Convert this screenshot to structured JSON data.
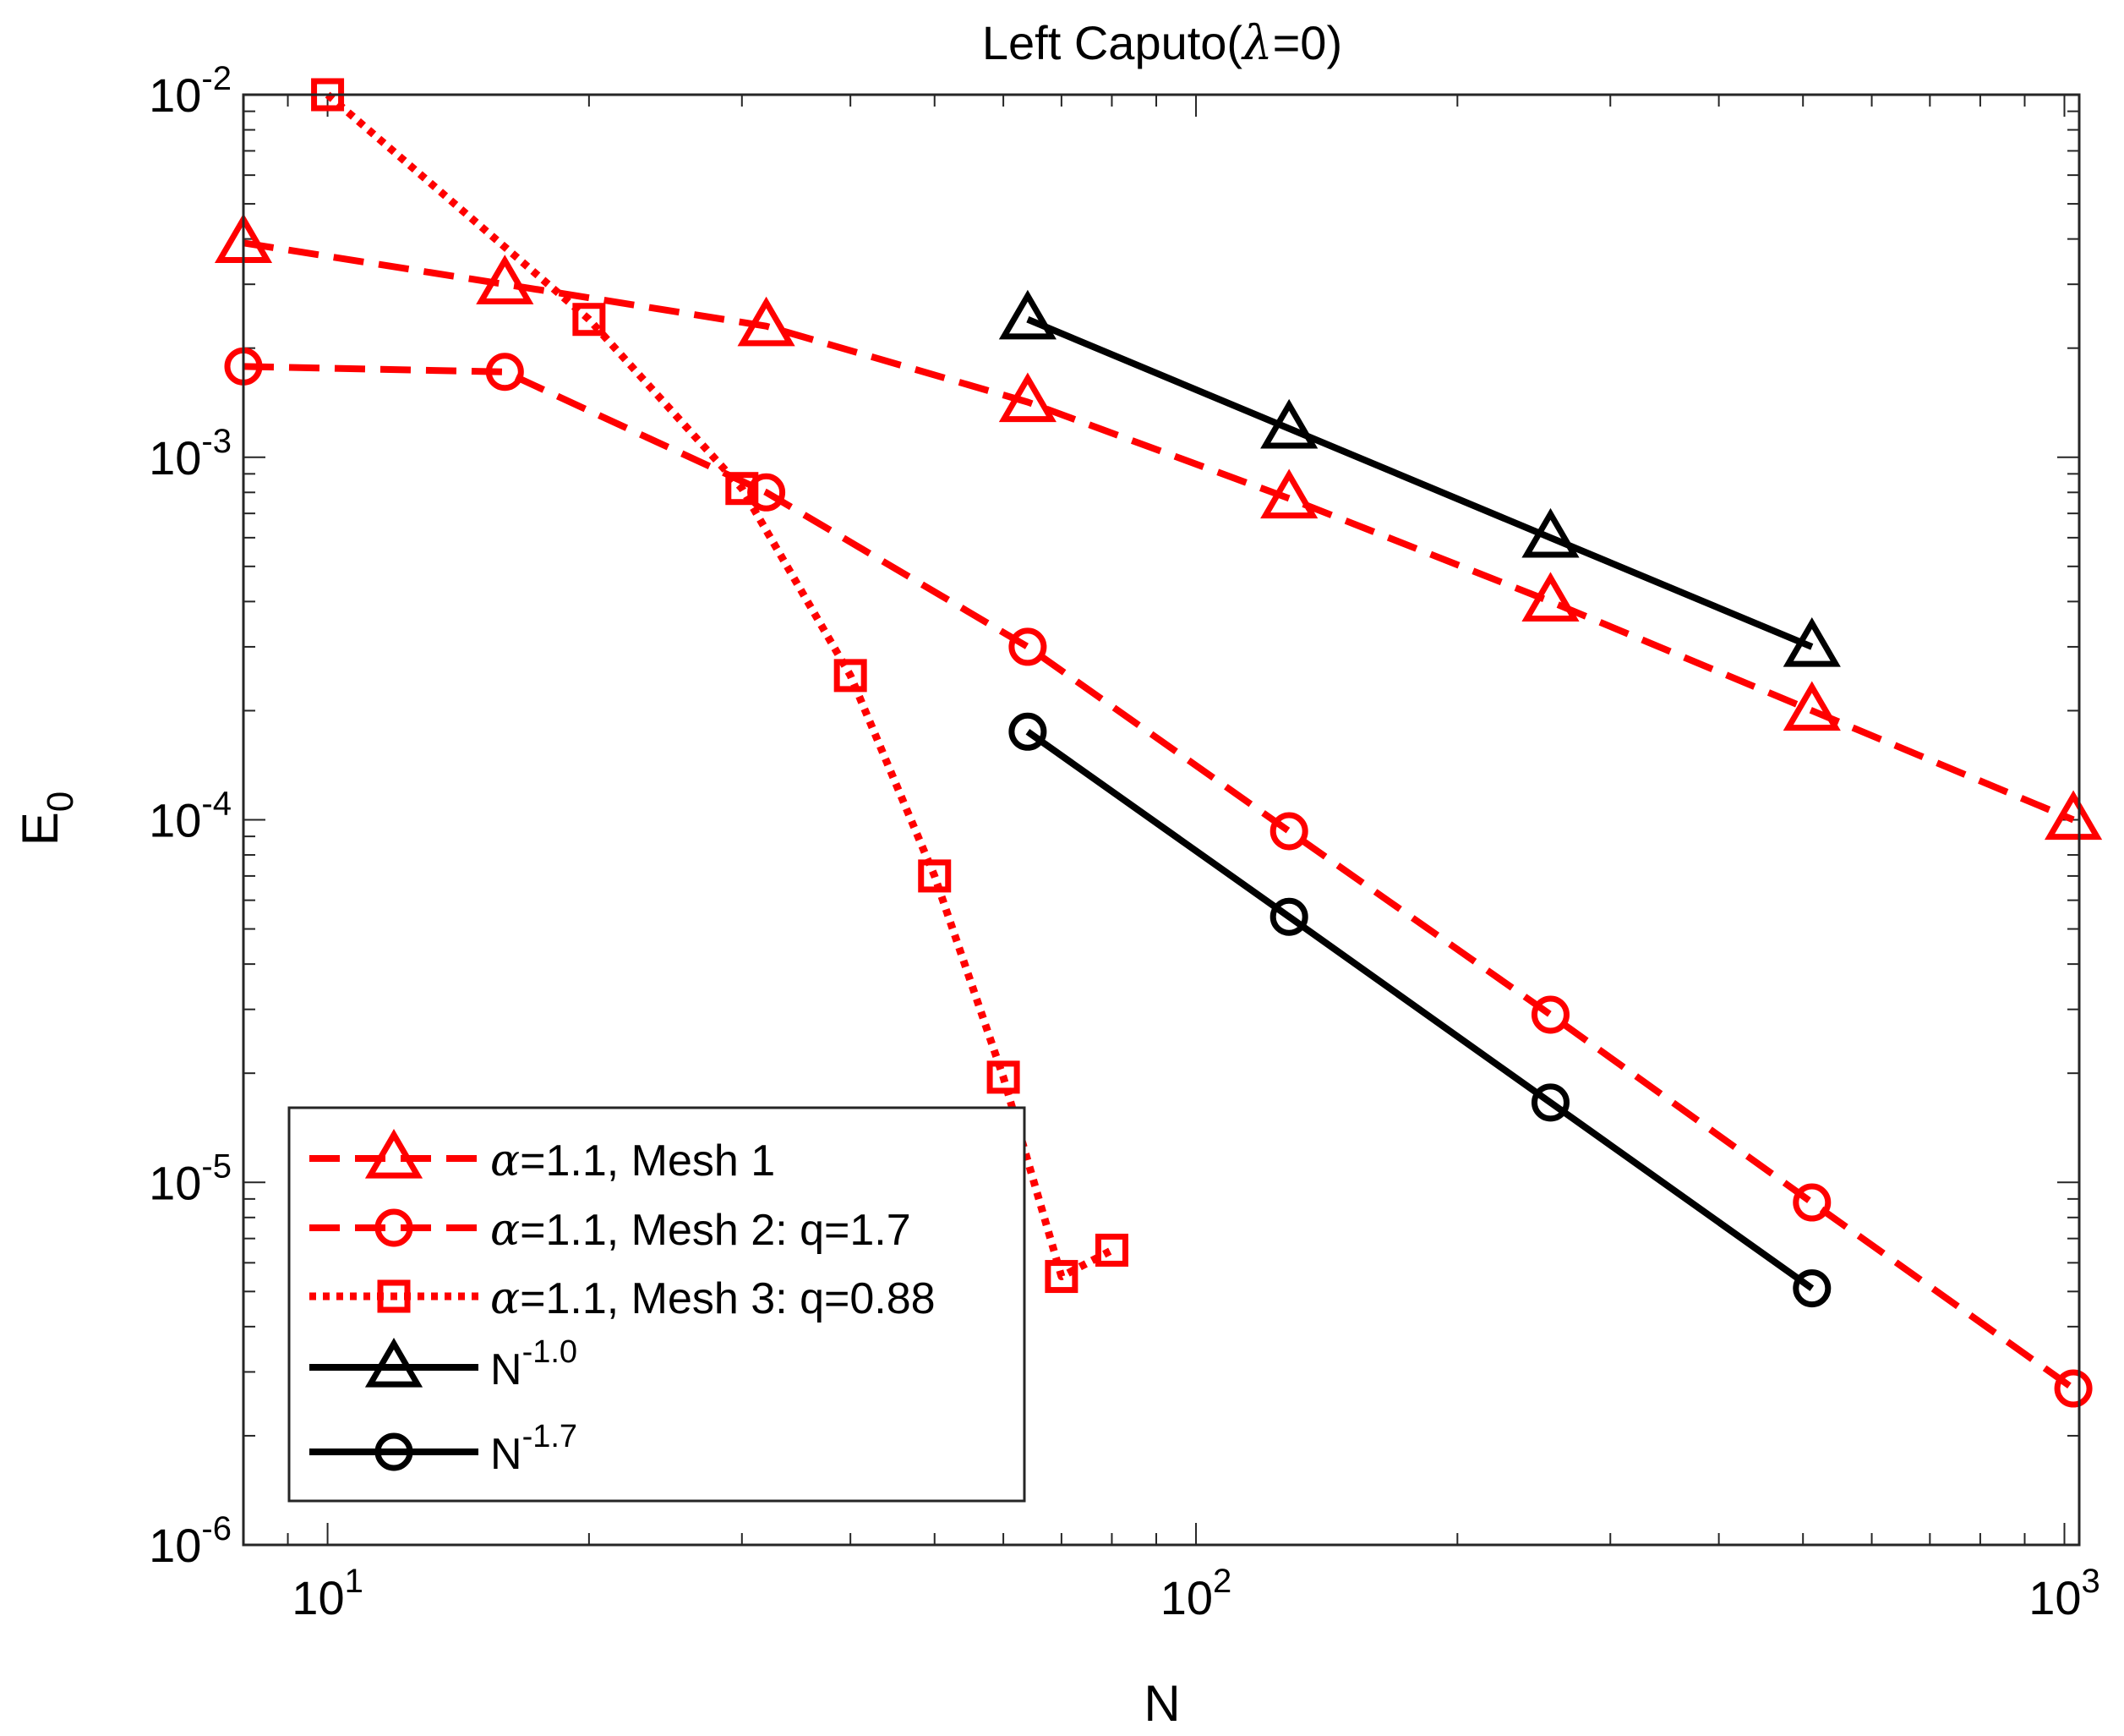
{
  "chart_data": {
    "type": "line",
    "scale": {
      "x": "log",
      "y": "log"
    },
    "title": {
      "prefix": "Left Caputo(",
      "symbol": "λ",
      "suffix": "=0)"
    },
    "xlabel": "N",
    "ylabel": {
      "base": "E",
      "sub": "0"
    },
    "xlim": [
      8,
      1040
    ],
    "ylim": [
      1e-06,
      0.01
    ],
    "x_ticks": [
      {
        "base": "10",
        "exp": "1",
        "value": 10
      },
      {
        "base": "10",
        "exp": "2",
        "value": 100
      },
      {
        "base": "10",
        "exp": "3",
        "value": 1000
      }
    ],
    "y_ticks": [
      {
        "base": "10",
        "exp": "-6",
        "value": 1e-06
      },
      {
        "base": "10",
        "exp": "-5",
        "value": 1e-05
      },
      {
        "base": "10",
        "exp": "-4",
        "value": 0.0001
      },
      {
        "base": "10",
        "exp": "-3",
        "value": 0.001
      },
      {
        "base": "10",
        "exp": "-2",
        "value": 0.01
      }
    ],
    "grid": false,
    "legend_position": "bottom-left",
    "series": [
      {
        "name": "Mesh 1",
        "legend": {
          "symbol": "α",
          "rest": "=1.1, Mesh 1"
        },
        "color": "#ff0000",
        "dash": "dashed",
        "marker": "triangle",
        "x": [
          8,
          16,
          32,
          64,
          128,
          256,
          512,
          1024
        ],
        "y": [
          0.0039,
          0.003,
          0.0023,
          0.00142,
          0.00077,
          0.0004,
          0.0002,
          0.0001
        ]
      },
      {
        "name": "Mesh 2",
        "legend": {
          "symbol": "α",
          "rest": "=1.1, Mesh 2: q=1.7"
        },
        "color": "#ff0000",
        "dash": "dashed",
        "marker": "circle",
        "x": [
          8,
          16,
          32,
          64,
          128,
          256,
          512,
          1024
        ],
        "y": [
          0.00178,
          0.00172,
          0.0008,
          0.0003,
          9.3e-05,
          2.9e-05,
          8.8e-06,
          2.7e-06
        ]
      },
      {
        "name": "Mesh 3",
        "legend": {
          "symbol": "α",
          "rest": "=1.1, Mesh 3: q=0.88"
        },
        "color": "#ff0000",
        "dash": "dotted",
        "marker": "square",
        "x": [
          10,
          20,
          30,
          40,
          50,
          60,
          70,
          80
        ],
        "y": [
          0.01,
          0.0024,
          0.00082,
          0.00025,
          7e-05,
          1.95e-05,
          5.5e-06,
          6.5e-06
        ]
      },
      {
        "name": "N^-1.0",
        "legend": {
          "base": "N",
          "exp": "-1.0"
        },
        "color": "#000000",
        "dash": "solid",
        "marker": "triangle",
        "x": [
          64,
          128,
          256,
          512
        ],
        "y": [
          0.0024,
          0.0012,
          0.0006,
          0.0003
        ]
      },
      {
        "name": "N^-1.7",
        "legend": {
          "base": "N",
          "exp": "-1.7"
        },
        "color": "#000000",
        "dash": "solid",
        "marker": "circle",
        "x": [
          64,
          128,
          256,
          512
        ],
        "y": [
          0.000175,
          5.4e-05,
          1.66e-05,
          5.1e-06
        ]
      }
    ]
  }
}
